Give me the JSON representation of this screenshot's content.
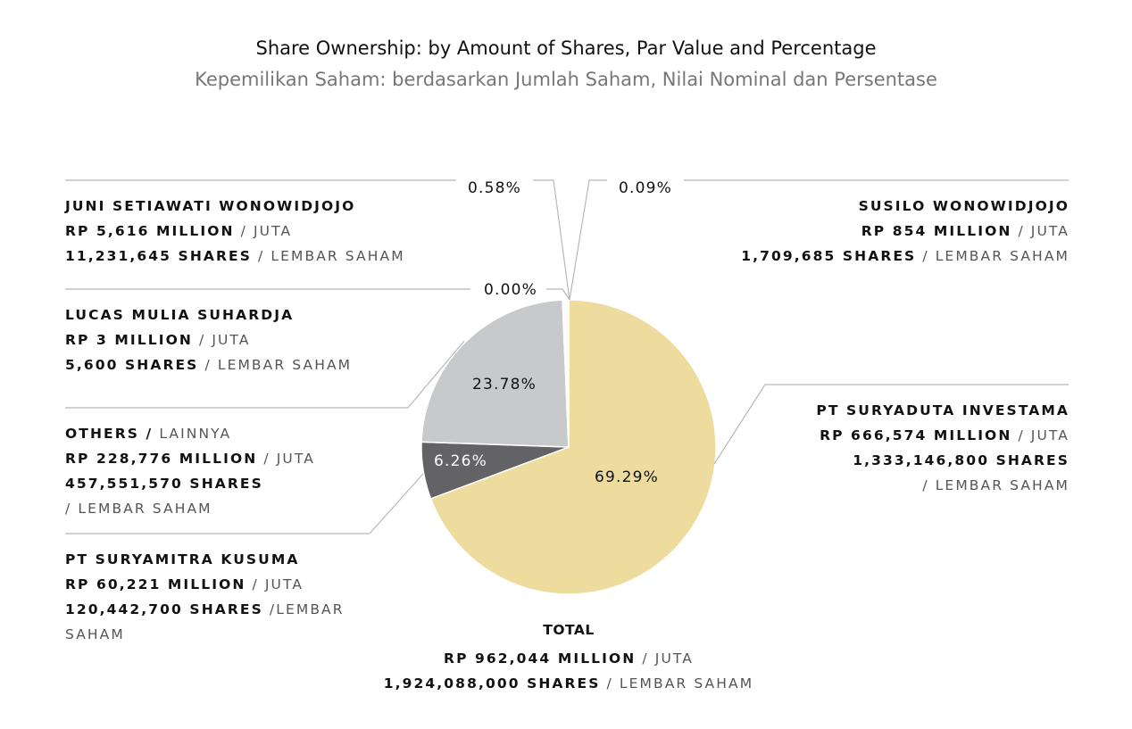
{
  "header": {
    "title_en": "Share Ownership: by Amount of Shares, Par Value and Percentage",
    "title_id": "Kepemilikan Saham: berdasarkan Jumlah Saham, Nilai Nominal dan Persentase"
  },
  "colors": {
    "suryaduta": "#eedb9e",
    "suryamitra": "#636366",
    "others": "#c8c9cb",
    "small": "#ffffff",
    "leader": "#b8b8b8",
    "label_dark": "#111111",
    "label_light": "#ffffff"
  },
  "shareholders": [
    {
      "key": "juni",
      "name": "JUNI SETIAWATI WONOWIDJOJO",
      "name_suffix": "",
      "value": "RP 5,616 MILLION",
      "value_suffix": "/ JUTA",
      "shares": "11,231,645 SHARES",
      "shares_suffix": "/ LEMBAR SAHAM",
      "percent_label": "0.58%"
    },
    {
      "key": "susilo",
      "name": "SUSILO WONOWIDJOJO",
      "name_suffix": "",
      "value": "RP 854 MILLION",
      "value_suffix": "/ JUTA",
      "shares": "1,709,685 SHARES",
      "shares_suffix": "/ LEMBAR SAHAM",
      "percent_label": "0.09%"
    },
    {
      "key": "lucas",
      "name": "LUCAS MULIA SUHARDJA",
      "name_suffix": "",
      "value": "RP 3 MILLION",
      "value_suffix": "/ JUTA",
      "shares": "5,600 SHARES",
      "shares_suffix": "/ LEMBAR SAHAM",
      "percent_label": "0.00%"
    },
    {
      "key": "others",
      "name": "OTHERS /",
      "name_suffix": "LAINNYA",
      "value": "RP 228,776 MILLION",
      "value_suffix": "/ JUTA",
      "shares": "457,551,570 SHARES",
      "shares_suffix": "/ LEMBAR SAHAM",
      "percent_label": "23.78%"
    },
    {
      "key": "suryamitra",
      "name": "PT SURYAMITRA KUSUMA",
      "name_suffix": "",
      "value": "RP 60,221 MILLION",
      "value_suffix": "/ JUTA",
      "shares": "120,442,700 SHARES",
      "shares_suffix": "/LEMBAR",
      "shares_suffix2": "SAHAM",
      "percent_label": "6.26%"
    },
    {
      "key": "suryaduta",
      "name": "PT SURYADUTA INVESTAMA",
      "name_suffix": "",
      "value": "RP 666,574 MILLION",
      "value_suffix": "/ JUTA",
      "shares": "1,333,146,800 SHARES",
      "shares_suffix": "/ LEMBAR SAHAM",
      "percent_label": "69.29%"
    }
  ],
  "total": {
    "label": "TOTAL",
    "value": "RP 962,044 MILLION",
    "value_suffix": "/ JUTA",
    "shares": "1,924,088,000 SHARES",
    "shares_suffix": "/ LEMBAR SAHAM"
  },
  "chart_data": {
    "type": "pie",
    "title": "Share Ownership: by Amount of Shares, Par Value and Percentage",
    "subtitle": "Kepemilikan Saham: berdasarkan Jumlah Saham, Nilai Nominal dan Persentase",
    "start": "top",
    "direction": "clockwise",
    "slices": [
      {
        "label": "PT Suryaduta Investama",
        "value": 69.29,
        "display": "69.29%",
        "color": "#eedb9e",
        "label_color": "#111111"
      },
      {
        "label": "PT Suryamitra Kusuma",
        "value": 6.26,
        "display": "6.26%",
        "color": "#636366",
        "label_color": "#ffffff"
      },
      {
        "label": "Others / Lainnya",
        "value": 23.78,
        "display": "23.78%",
        "color": "#c8c9cb",
        "label_color": "#111111"
      },
      {
        "label": "Lucas Mulia Suhardja",
        "value": 0.0,
        "display": "0.00%",
        "color": "#ffffff",
        "label_color": "#111111"
      },
      {
        "label": "Juni Setiawati Wonowidjojo",
        "value": 0.58,
        "display": "0.58%",
        "color": "#ffffff",
        "label_color": "#111111"
      },
      {
        "label": "Susilo Wonowidjojo",
        "value": 0.09,
        "display": "0.09%",
        "color": "#ffffff",
        "label_color": "#111111"
      }
    ],
    "unit": "%"
  }
}
